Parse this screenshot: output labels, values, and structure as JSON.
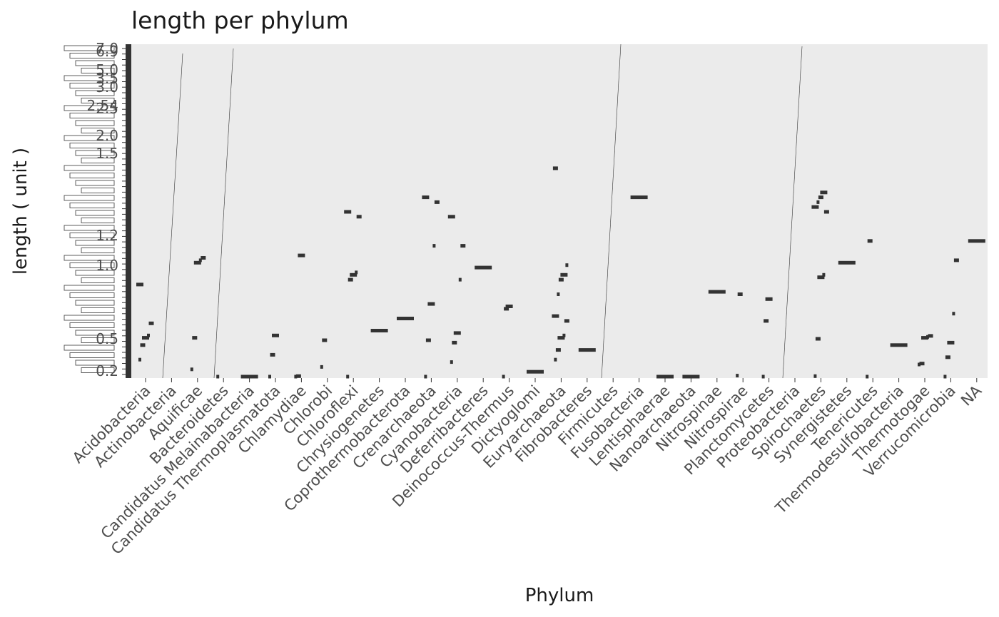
{
  "chart_data": {
    "type": "scatter",
    "title": "length per phylum",
    "xlabel": "Phylum",
    "ylabel": "length ( unit )",
    "grid": false,
    "legend": "none",
    "colors": {
      "panel": "#ebebeb",
      "mark": "#333333",
      "text": "#4d4d4d",
      "title": "#1a1a1a"
    },
    "categories": [
      "Acidobacteria",
      "Actinobacteria",
      "Aquificae",
      "Bacteroidetes",
      "Candidatus Melainabacteria",
      "Candidatus Thermoplasmatota",
      "Chlamydiae",
      "Chlorobi",
      "Chloroflexi",
      "Chrysiogenetes",
      "Coprothermobacterota",
      "Crenarchaeota",
      "Cyanobacteria",
      "Deferribacteres",
      "Deinococcus-Thermus",
      "Dictyoglomi",
      "Euryarchaeota",
      "Fibrobacteres",
      "Firmicutes",
      "Fusobacteria",
      "Lentisphaerae",
      "Nanoarchaeota",
      "Nitrospinae",
      "Nitrospirae",
      "Planctomycetes",
      "Proteobacteria",
      "Spirochaetes",
      "Synergistetes",
      "Tenericutes",
      "Thermodesulfobacteria",
      "Thermotogae",
      "Verrucomicrobia",
      "NA"
    ],
    "y_tick_labels_visible": [
      "7.0",
      "6.9",
      "5.0",
      "3.5",
      "3.0",
      "2.54",
      "2.5",
      "2.0",
      "1.5",
      "1.2",
      "1.0",
      "0.5",
      "0.2"
    ],
    "y_range": [
      0.2,
      7.0
    ],
    "series": [
      {
        "values": [
          {
            "x": "Acidobacteria",
            "y": [
              0.55,
              0.85,
              1.0,
              1.05,
              1.3,
              2.1
            ]
          },
          {
            "x": "Aquificae",
            "y": [
              0.35,
              1.0,
              2.55,
              2.6,
              2.65
            ]
          },
          {
            "x": "Bacteroidetes",
            "y": [
              0.2
            ]
          },
          {
            "x": "Candidatus Melainabacteria",
            "y": [
              0.2
            ]
          },
          {
            "x": "Candidatus Thermoplasmatota",
            "y": [
              0.2,
              0.65,
              1.05
            ]
          },
          {
            "x": "Chlamydiae",
            "y": [
              0.2,
              0.21,
              2.7
            ]
          },
          {
            "x": "Chlorobi",
            "y": [
              0.4,
              0.95
            ]
          },
          {
            "x": "Chloroflexi",
            "y": [
              0.2,
              2.2,
              2.3,
              2.35,
              3.5,
              3.6
            ]
          },
          {
            "x": "Chrysiogenetes",
            "y": [
              1.15
            ]
          },
          {
            "x": "Coprothermobacterota",
            "y": [
              1.4
            ]
          },
          {
            "x": "Crenarchaeota",
            "y": [
              0.2,
              0.95,
              1.7,
              2.9,
              3.8,
              3.9
            ]
          },
          {
            "x": "Cyanobacteria",
            "y": [
              0.5,
              0.9,
              1.1,
              2.2,
              2.9,
              3.5
            ]
          },
          {
            "x": "Deferribacteres",
            "y": [
              2.45
            ]
          },
          {
            "x": "Deinococcus-Thermus",
            "y": [
              0.2,
              1.6,
              1.65
            ]
          },
          {
            "x": "Dictyoglomi",
            "y": [
              0.3
            ]
          },
          {
            "x": "Euryarchaeota",
            "y": [
              0.55,
              0.75,
              1.0,
              1.05,
              1.35,
              1.45,
              1.9,
              2.2,
              2.3,
              2.5,
              4.5
            ]
          },
          {
            "x": "Fibrobacteres",
            "y": [
              0.75
            ]
          },
          {
            "x": "Fusobacteria",
            "y": [
              3.9
            ]
          },
          {
            "x": "Lentisphaerae",
            "y": [
              0.2
            ]
          },
          {
            "x": "Nanoarchaeota",
            "y": [
              0.2
            ]
          },
          {
            "x": "Nitrospinae",
            "y": [
              1.95
            ]
          },
          {
            "x": "Nitrospirae",
            "y": [
              0.22,
              1.9
            ]
          },
          {
            "x": "Planctomycetes",
            "y": [
              0.2,
              1.35,
              1.8
            ]
          },
          {
            "x": "Spirochaetes",
            "y": [
              0.21,
              0.98,
              2.25,
              2.3,
              3.6,
              3.7,
              3.8,
              3.9,
              4.0
            ]
          },
          {
            "x": "Synergistetes",
            "y": [
              2.55
            ]
          },
          {
            "x": "Tenericutes",
            "y": [
              0.2,
              3.0
            ]
          },
          {
            "x": "Thermodesulfobacteria",
            "y": [
              0.85
            ]
          },
          {
            "x": "Thermotogae",
            "y": [
              0.45,
              0.47,
              1.0,
              1.02,
              1.04
            ]
          },
          {
            "x": "Verrucomicrobia",
            "y": [
              0.2,
              0.6,
              0.9,
              1.5,
              2.6
            ]
          },
          {
            "x": "NA",
            "y": [
              3.0
            ]
          }
        ]
      }
    ]
  }
}
